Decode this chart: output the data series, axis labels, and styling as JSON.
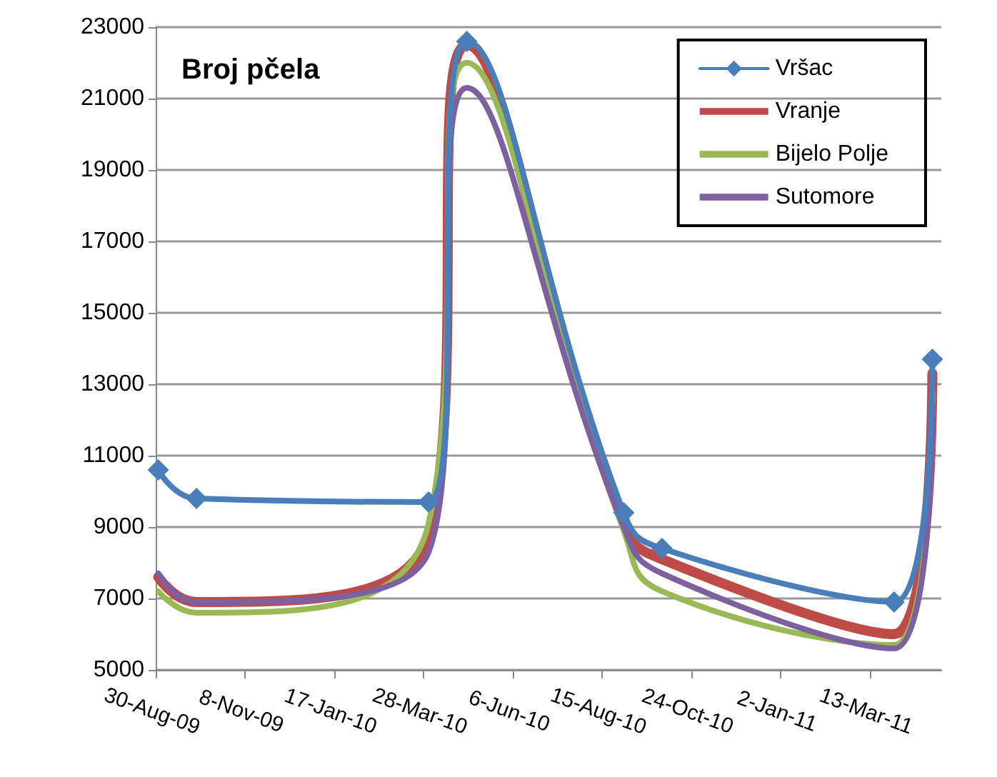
{
  "chart_data": {
    "type": "line",
    "title": "Broj pčela",
    "x": [
      "2009-09-01",
      "2009-10-01",
      "2010-04-01",
      "2010-05-01",
      "2010-09-01",
      "2010-10-01",
      "2011-04-01",
      "2011-05-01"
    ],
    "series": [
      {
        "name": "Vršac",
        "color": "#4a7ebb",
        "marker": "diamond",
        "values": [
          10600,
          9800,
          9700,
          22600,
          9400,
          8400,
          6900,
          13700
        ]
      },
      {
        "name": "Vranje",
        "color": "#be4b48",
        "marker": "none",
        "values": [
          7600,
          6900,
          8800,
          22500,
          9100,
          8100,
          6000,
          13300
        ]
      },
      {
        "name": "Bijelo Polje",
        "color": "#98b954",
        "marker": "none",
        "values": [
          7200,
          6600,
          9100,
          22000,
          8900,
          7200,
          5700,
          12800
        ]
      },
      {
        "name": "Sutomore",
        "color": "#7d60a0",
        "marker": "none",
        "values": [
          7700,
          6900,
          8300,
          21300,
          9000,
          7700,
          5600,
          12400
        ]
      }
    ],
    "xlim": [
      "2009-08-30",
      "2011-05-08"
    ],
    "xticks": [
      {
        "value": "2009-08-30",
        "label": "30-Aug-09"
      },
      {
        "value": "2009-11-08",
        "label": "8-Nov-09"
      },
      {
        "value": "2010-01-17",
        "label": "17-Jan-10"
      },
      {
        "value": "2010-03-28",
        "label": "28-Mar-10"
      },
      {
        "value": "2010-06-06",
        "label": "6-Jun-10"
      },
      {
        "value": "2010-08-15",
        "label": "15-Aug-10"
      },
      {
        "value": "2010-10-24",
        "label": "24-Oct-10"
      },
      {
        "value": "2011-01-02",
        "label": "2-Jan-11"
      },
      {
        "value": "2011-03-13",
        "label": "13-Mar-11"
      }
    ],
    "ylim": [
      5000,
      23000
    ],
    "yticks": [
      5000,
      7000,
      9000,
      11000,
      13000,
      15000,
      17000,
      19000,
      21000,
      23000
    ],
    "grid": "y",
    "legend": "top right",
    "line_style": "solid"
  }
}
